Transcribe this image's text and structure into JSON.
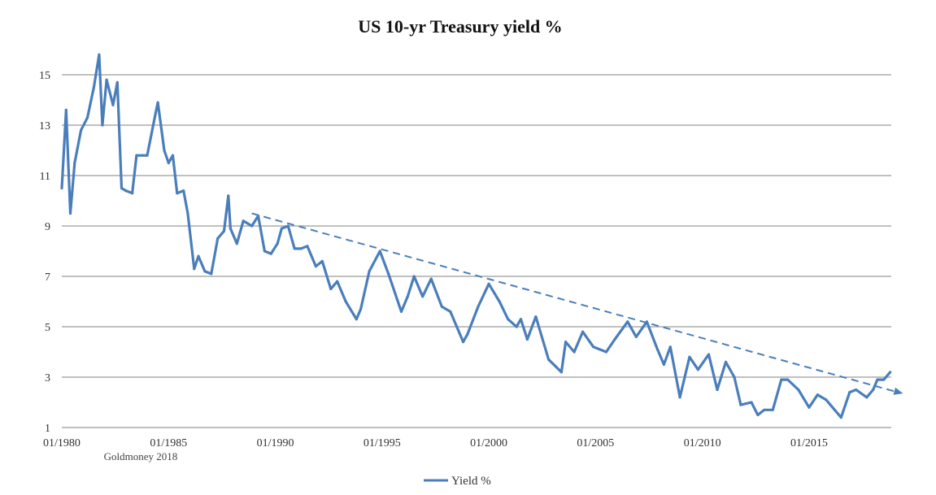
{
  "chart_data": {
    "type": "line",
    "title": "US 10-yr Treasury yield %",
    "xlabel": "",
    "ylabel": "",
    "source_note": "Goldmoney 2018",
    "xlim": [
      1980,
      2018.85
    ],
    "ylim": [
      1,
      15
    ],
    "y_ticks": [
      1,
      3,
      5,
      7,
      9,
      11,
      13,
      15
    ],
    "x_ticks": [
      {
        "year": 1980,
        "label": "01/1980"
      },
      {
        "year": 1985,
        "label": "01/1985"
      },
      {
        "year": 1990,
        "label": "01/1990"
      },
      {
        "year": 1995,
        "label": "01/1995"
      },
      {
        "year": 2000,
        "label": "01/2000"
      },
      {
        "year": 2005,
        "label": "01/2005"
      },
      {
        "year": 2010,
        "label": "01/2010"
      },
      {
        "year": 2015,
        "label": "01/2015"
      }
    ],
    "grid": "horizontal",
    "legend_position": "bottom",
    "series": [
      {
        "name": "Yield %",
        "color": "#4a7ebb",
        "points": [
          [
            1980.0,
            10.5
          ],
          [
            1980.2,
            13.6
          ],
          [
            1980.4,
            9.5
          ],
          [
            1980.6,
            11.5
          ],
          [
            1980.9,
            12.8
          ],
          [
            1981.2,
            13.3
          ],
          [
            1981.5,
            14.5
          ],
          [
            1981.75,
            15.8
          ],
          [
            1981.9,
            13.0
          ],
          [
            1982.1,
            14.8
          ],
          [
            1982.4,
            13.8
          ],
          [
            1982.6,
            14.7
          ],
          [
            1982.8,
            10.5
          ],
          [
            1983.0,
            10.4
          ],
          [
            1983.3,
            10.3
          ],
          [
            1983.5,
            11.8
          ],
          [
            1983.8,
            11.8
          ],
          [
            1984.0,
            11.8
          ],
          [
            1984.4,
            13.5
          ],
          [
            1984.5,
            13.9
          ],
          [
            1984.8,
            12.0
          ],
          [
            1985.0,
            11.5
          ],
          [
            1985.2,
            11.8
          ],
          [
            1985.4,
            10.3
          ],
          [
            1985.7,
            10.4
          ],
          [
            1985.9,
            9.5
          ],
          [
            1986.2,
            7.3
          ],
          [
            1986.4,
            7.8
          ],
          [
            1986.7,
            7.2
          ],
          [
            1987.0,
            7.1
          ],
          [
            1987.3,
            8.5
          ],
          [
            1987.6,
            8.8
          ],
          [
            1987.8,
            10.2
          ],
          [
            1987.9,
            8.9
          ],
          [
            1988.2,
            8.3
          ],
          [
            1988.5,
            9.2
          ],
          [
            1988.9,
            9.0
          ],
          [
            1989.2,
            9.4
          ],
          [
            1989.5,
            8.0
          ],
          [
            1989.8,
            7.9
          ],
          [
            1990.1,
            8.3
          ],
          [
            1990.3,
            8.9
          ],
          [
            1990.6,
            9.0
          ],
          [
            1990.9,
            8.1
          ],
          [
            1991.2,
            8.1
          ],
          [
            1991.5,
            8.2
          ],
          [
            1991.9,
            7.4
          ],
          [
            1992.2,
            7.6
          ],
          [
            1992.6,
            6.5
          ],
          [
            1992.9,
            6.8
          ],
          [
            1993.3,
            6.0
          ],
          [
            1993.8,
            5.3
          ],
          [
            1994.0,
            5.7
          ],
          [
            1994.4,
            7.2
          ],
          [
            1994.9,
            8.0
          ],
          [
            1995.3,
            7.1
          ],
          [
            1995.9,
            5.6
          ],
          [
            1996.2,
            6.2
          ],
          [
            1996.5,
            7.0
          ],
          [
            1996.9,
            6.2
          ],
          [
            1997.3,
            6.9
          ],
          [
            1997.8,
            5.8
          ],
          [
            1998.2,
            5.6
          ],
          [
            1998.8,
            4.4
          ],
          [
            1999.0,
            4.7
          ],
          [
            1999.5,
            5.8
          ],
          [
            2000.0,
            6.7
          ],
          [
            2000.5,
            6.0
          ],
          [
            2000.9,
            5.3
          ],
          [
            2001.3,
            5.0
          ],
          [
            2001.5,
            5.3
          ],
          [
            2001.8,
            4.5
          ],
          [
            2002.2,
            5.4
          ],
          [
            2002.8,
            3.7
          ],
          [
            2003.4,
            3.2
          ],
          [
            2003.6,
            4.4
          ],
          [
            2004.0,
            4.0
          ],
          [
            2004.4,
            4.8
          ],
          [
            2004.9,
            4.2
          ],
          [
            2005.5,
            4.0
          ],
          [
            2005.9,
            4.5
          ],
          [
            2006.5,
            5.2
          ],
          [
            2006.9,
            4.6
          ],
          [
            2007.4,
            5.2
          ],
          [
            2007.9,
            4.1
          ],
          [
            2008.2,
            3.5
          ],
          [
            2008.5,
            4.2
          ],
          [
            2008.95,
            2.2
          ],
          [
            2009.4,
            3.8
          ],
          [
            2009.8,
            3.3
          ],
          [
            2010.3,
            3.9
          ],
          [
            2010.7,
            2.5
          ],
          [
            2011.1,
            3.6
          ],
          [
            2011.5,
            3.0
          ],
          [
            2011.8,
            1.9
          ],
          [
            2012.3,
            2.0
          ],
          [
            2012.6,
            1.5
          ],
          [
            2012.9,
            1.7
          ],
          [
            2013.3,
            1.7
          ],
          [
            2013.7,
            2.9
          ],
          [
            2014.0,
            2.9
          ],
          [
            2014.5,
            2.5
          ],
          [
            2015.0,
            1.8
          ],
          [
            2015.4,
            2.3
          ],
          [
            2015.8,
            2.1
          ],
          [
            2016.2,
            1.7
          ],
          [
            2016.5,
            1.4
          ],
          [
            2016.9,
            2.4
          ],
          [
            2017.2,
            2.5
          ],
          [
            2017.7,
            2.2
          ],
          [
            2018.0,
            2.5
          ],
          [
            2018.2,
            2.9
          ],
          [
            2018.5,
            2.9
          ],
          [
            2018.8,
            3.2
          ]
        ]
      }
    ],
    "trendline": {
      "style": "dashed",
      "color": "#4a7ebb",
      "start": [
        1988.9,
        9.5
      ],
      "end": [
        2019.4,
        2.35
      ],
      "arrow": true
    }
  }
}
